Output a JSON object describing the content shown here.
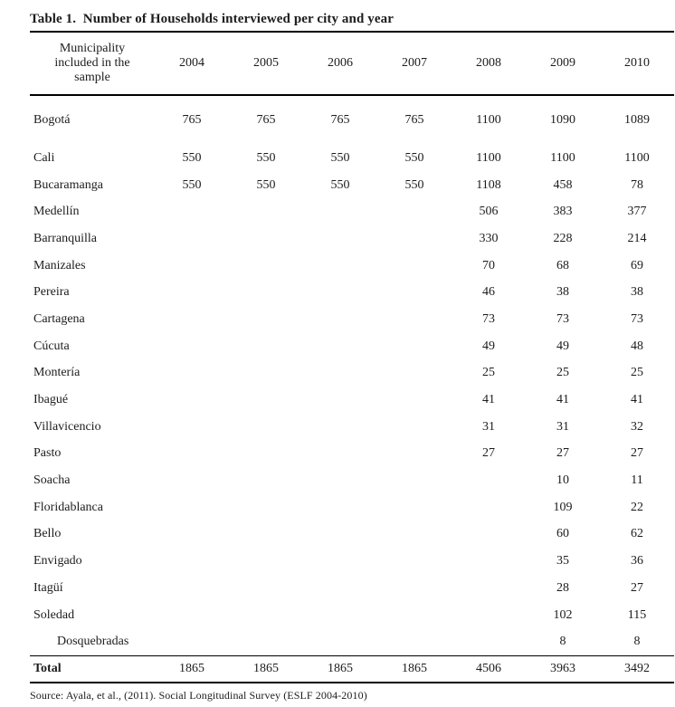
{
  "page": {
    "title": "Table 1.  Number of Households interviewed per city and year",
    "source": "Source: Ayala, et al., (2011). Social Longitudinal Survey (ESLF 2004-2010)"
  },
  "table": {
    "municipality_header": "Municipality included in the sample",
    "year_headers": [
      "2004",
      "2005",
      "2006",
      "2007",
      "2008",
      "2009",
      "2010"
    ],
    "rows": [
      {
        "municipality": "Bogotá",
        "values": [
          "765",
          "765",
          "765",
          "765",
          "1100",
          "1090",
          "1089"
        ],
        "tall": true
      },
      {
        "municipality": "Cali",
        "values": [
          "550",
          "550",
          "550",
          "550",
          "1100",
          "1100",
          "1100"
        ]
      },
      {
        "municipality": "Bucaramanga",
        "values": [
          "550",
          "550",
          "550",
          "550",
          "1108",
          "458",
          "78"
        ]
      },
      {
        "municipality": "Medellín",
        "values": [
          "",
          "",
          "",
          "",
          "506",
          "383",
          "377"
        ]
      },
      {
        "municipality": "Barranquilla",
        "values": [
          "",
          "",
          "",
          "",
          "330",
          "228",
          "214"
        ]
      },
      {
        "municipality": "Manizales",
        "values": [
          "",
          "",
          "",
          "",
          "70",
          "68",
          "69"
        ]
      },
      {
        "municipality": "Pereira",
        "values": [
          "",
          "",
          "",
          "",
          "46",
          "38",
          "38"
        ]
      },
      {
        "municipality": "Cartagena",
        "values": [
          "",
          "",
          "",
          "",
          "73",
          "73",
          "73"
        ]
      },
      {
        "municipality": "Cúcuta",
        "values": [
          "",
          "",
          "",
          "",
          "49",
          "49",
          "48"
        ]
      },
      {
        "municipality": "Montería",
        "values": [
          "",
          "",
          "",
          "",
          "25",
          "25",
          "25"
        ]
      },
      {
        "municipality": "Ibagué",
        "values": [
          "",
          "",
          "",
          "",
          "41",
          "41",
          "41"
        ]
      },
      {
        "municipality": "Villavicencio",
        "values": [
          "",
          "",
          "",
          "",
          "31",
          "31",
          "32"
        ]
      },
      {
        "municipality": "Pasto",
        "values": [
          "",
          "",
          "",
          "",
          "27",
          "27",
          "27"
        ]
      },
      {
        "municipality": "Soacha",
        "values": [
          "",
          "",
          "",
          "",
          "",
          "10",
          "11"
        ]
      },
      {
        "municipality": "Floridablanca",
        "values": [
          "",
          "",
          "",
          "",
          "",
          "109",
          "22"
        ]
      },
      {
        "municipality": "Bello",
        "values": [
          "",
          "",
          "",
          "",
          "",
          "60",
          "62"
        ]
      },
      {
        "municipality": "Envigado",
        "values": [
          "",
          "",
          "",
          "",
          "",
          "35",
          "36"
        ]
      },
      {
        "municipality": "Itagüí",
        "values": [
          "",
          "",
          "",
          "",
          "",
          "28",
          "27"
        ]
      },
      {
        "municipality": "Soledad",
        "values": [
          "",
          "",
          "",
          "",
          "",
          "102",
          "115"
        ]
      },
      {
        "municipality": "Dosquebradas",
        "values": [
          "",
          "",
          "",
          "",
          "",
          "8",
          "8"
        ],
        "indent": true
      }
    ],
    "total_row": {
      "label": "Total",
      "values": [
        "1865",
        "1865",
        "1865",
        "1865",
        "4506",
        "3963",
        "3492"
      ]
    }
  }
}
